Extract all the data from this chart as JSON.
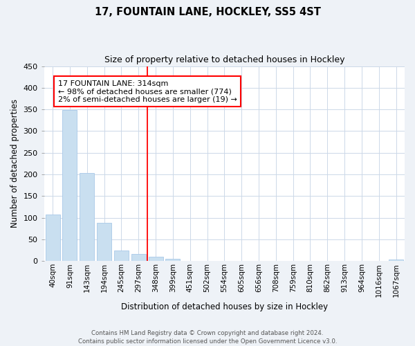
{
  "title": "17, FOUNTAIN LANE, HOCKLEY, SS5 4ST",
  "subtitle": "Size of property relative to detached houses in Hockley",
  "bar_labels": [
    "40sqm",
    "91sqm",
    "143sqm",
    "194sqm",
    "245sqm",
    "297sqm",
    "348sqm",
    "399sqm",
    "451sqm",
    "502sqm",
    "554sqm",
    "605sqm",
    "656sqm",
    "708sqm",
    "759sqm",
    "810sqm",
    "862sqm",
    "913sqm",
    "964sqm",
    "1016sqm",
    "1067sqm"
  ],
  "bar_values": [
    108,
    348,
    203,
    89,
    24,
    17,
    10,
    5,
    0,
    0,
    0,
    0,
    0,
    0,
    0,
    0,
    0,
    0,
    0,
    0,
    3
  ],
  "bar_color": "#c9dff0",
  "bar_edge_color": "#a8c8e8",
  "ylabel": "Number of detached properties",
  "xlabel": "Distribution of detached houses by size in Hockley",
  "ylim": [
    0,
    450
  ],
  "yticks": [
    0,
    50,
    100,
    150,
    200,
    250,
    300,
    350,
    400,
    450
  ],
  "red_line_x": 5.5,
  "annotation_title": "17 FOUNTAIN LANE: 314sqm",
  "annotation_line1": "← 98% of detached houses are smaller (774)",
  "annotation_line2": "2% of semi-detached houses are larger (19) →",
  "footer_line1": "Contains HM Land Registry data © Crown copyright and database right 2024.",
  "footer_line2": "Contains public sector information licensed under the Open Government Licence v3.0.",
  "bg_color": "#eef2f7",
  "plot_bg_color": "#ffffff",
  "grid_color": "#ccd8e8"
}
